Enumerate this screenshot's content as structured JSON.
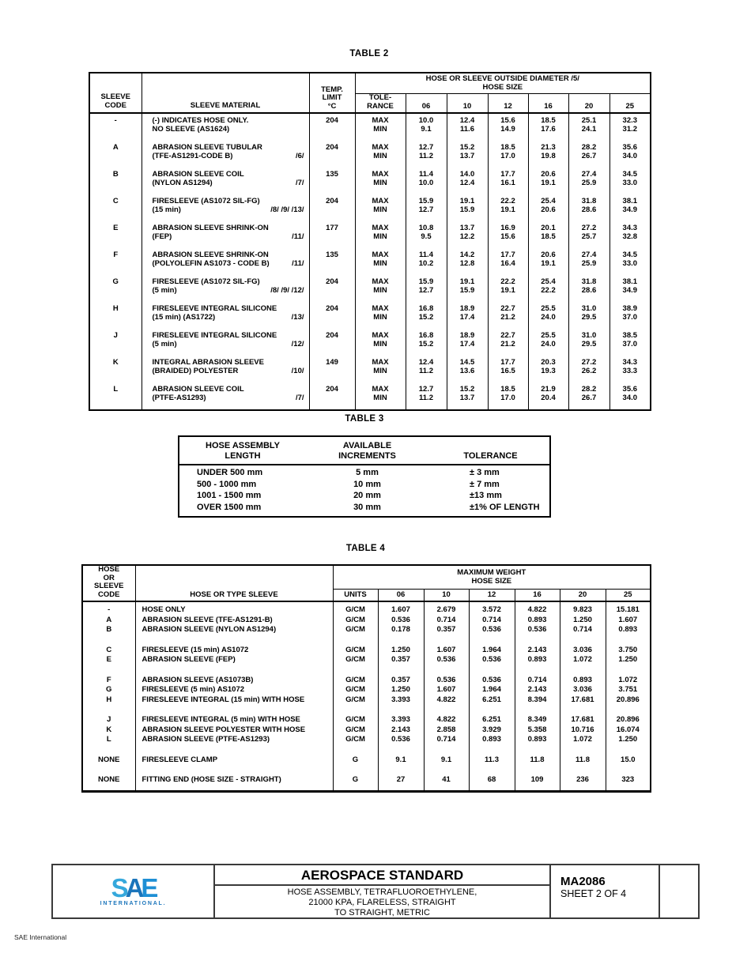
{
  "table2": {
    "title": "TABLE 2",
    "header": {
      "code_l1": "SLEEVE",
      "code_l2": "CODE",
      "material": "SLEEVE MATERIAL",
      "temp_l1": "TEMP.",
      "temp_l2": "LIMIT",
      "temp_l3": "°C",
      "span_l1": "HOSE OR SLEEVE OUTSIDE DIAMETER /5/",
      "span_l2": "HOSE SIZE",
      "tol_l1": "TOLE-",
      "tol_l2": "RANCE",
      "sizes": [
        "06",
        "10",
        "12",
        "16",
        "20",
        "25"
      ]
    },
    "labels": {
      "max": "MAX",
      "min": "MIN"
    },
    "rows": [
      {
        "code": "-",
        "m1": "(-) INDICATES HOSE ONLY.",
        "m2": "NO SLEEVE (AS1624)",
        "fn": "",
        "temp": "204",
        "max": [
          "10.0",
          "12.4",
          "15.6",
          "18.5",
          "25.1",
          "32.3"
        ],
        "min": [
          "9.1",
          "11.6",
          "14.9",
          "17.6",
          "24.1",
          "31.2"
        ]
      },
      {
        "code": "A",
        "m1": "ABRASION SLEEVE TUBULAR",
        "m2": "(TFE-AS1291-CODE B)",
        "fn": "/6/",
        "temp": "204",
        "max": [
          "12.7",
          "15.2",
          "18.5",
          "21.3",
          "28.2",
          "35.6"
        ],
        "min": [
          "11.2",
          "13.7",
          "17.0",
          "19.8",
          "26.7",
          "34.0"
        ]
      },
      {
        "code": "B",
        "m1": "ABRASION SLEEVE COIL",
        "m2": "(NYLON AS1294)",
        "fn": "/7/",
        "temp": "135",
        "max": [
          "11.4",
          "14.0",
          "17.7",
          "20.6",
          "27.4",
          "34.5"
        ],
        "min": [
          "10.0",
          "12.4",
          "16.1",
          "19.1",
          "25.9",
          "33.0"
        ]
      },
      {
        "code": "C",
        "m1": "FIRESLEEVE (AS1072 SIL-FG)",
        "m2": "(15 min)",
        "fn": "/8/ /9/ /13/",
        "temp": "204",
        "max": [
          "15.9",
          "19.1",
          "22.2",
          "25.4",
          "31.8",
          "38.1"
        ],
        "min": [
          "12.7",
          "15.9",
          "19.1",
          "20.6",
          "28.6",
          "34.9"
        ]
      },
      {
        "code": "E",
        "m1": "ABRASION SLEEVE SHRINK-ON",
        "m2": "(FEP)",
        "fn": "/11/",
        "temp": "177",
        "max": [
          "10.8",
          "13.7",
          "16.9",
          "20.1",
          "27.2",
          "34.3"
        ],
        "min": [
          "9.5",
          "12.2",
          "15.6",
          "18.5",
          "25.7",
          "32.8"
        ]
      },
      {
        "code": "F",
        "m1": "ABRASION SLEEVE SHRINK-ON",
        "m2": "(POLYOLEFIN AS1073 - CODE B)",
        "fn": "/11/",
        "temp": "135",
        "max": [
          "11.4",
          "14.2",
          "17.7",
          "20.6",
          "27.4",
          "34.5"
        ],
        "min": [
          "10.2",
          "12.8",
          "16.4",
          "19.1",
          "25.9",
          "33.0"
        ]
      },
      {
        "code": "G",
        "m1": "FIRESLEEVE (AS1072 SIL-FG)",
        "m2": "(5 min)",
        "fn": "/8/ /9/ /12/",
        "temp": "204",
        "max": [
          "15.9",
          "19.1",
          "22.2",
          "25.4",
          "31.8",
          "38.1"
        ],
        "min": [
          "12.7",
          "15.9",
          "19.1",
          "22.2",
          "28.6",
          "34.9"
        ]
      },
      {
        "code": "H",
        "m1": "FIRESLEEVE INTEGRAL SILICONE",
        "m2": "(15 min) (AS1722)",
        "fn": "/13/",
        "temp": "204",
        "max": [
          "16.8",
          "18.9",
          "22.7",
          "25.5",
          "31.0",
          "38.9"
        ],
        "min": [
          "15.2",
          "17.4",
          "21.2",
          "24.0",
          "29.5",
          "37.0"
        ]
      },
      {
        "code": "J",
        "m1": "FIRESLEEVE INTEGRAL SILICONE",
        "m2": "(5 min)",
        "fn": "/12/",
        "temp": "204",
        "max": [
          "16.8",
          "18.9",
          "22.7",
          "25.5",
          "31.0",
          "38.5"
        ],
        "min": [
          "15.2",
          "17.4",
          "21.2",
          "24.0",
          "29.5",
          "37.0"
        ]
      },
      {
        "code": "K",
        "m1": "INTEGRAL ABRASION SLEEVE",
        "m2": "(BRAIDED) POLYESTER",
        "fn": "/10/",
        "temp": "149",
        "max": [
          "12.4",
          "14.5",
          "17.7",
          "20.3",
          "27.2",
          "34.3"
        ],
        "min": [
          "11.2",
          "13.6",
          "16.5",
          "19.3",
          "26.2",
          "33.3"
        ]
      },
      {
        "code": "L",
        "m1": "ABRASION SLEEVE COIL",
        "m2": "(PTFE-AS1293)",
        "fn": "/7/",
        "temp": "204",
        "max": [
          "12.7",
          "15.2",
          "18.5",
          "21.9",
          "28.2",
          "35.6"
        ],
        "min": [
          "11.2",
          "13.7",
          "17.0",
          "20.4",
          "26.7",
          "34.0"
        ]
      }
    ]
  },
  "table3": {
    "title": "TABLE 3",
    "header": {
      "c1_l1": "HOSE ASSEMBLY",
      "c1_l2": "LENGTH",
      "c2_l1": "AVAILABLE",
      "c2_l2": "INCREMENTS",
      "c3": "TOLERANCE"
    },
    "rows": [
      {
        "length": "UNDER 500 mm",
        "increment": "5 mm",
        "tolerance": "± 3 mm"
      },
      {
        "length": "500 - 1000 mm",
        "increment": "10 mm",
        "tolerance": "± 7 mm"
      },
      {
        "length": "1001 - 1500 mm",
        "increment": "20 mm",
        "tolerance": "±13 mm"
      },
      {
        "length": "OVER 1500 mm",
        "increment": "30 mm",
        "tolerance": "±1% OF LENGTH"
      }
    ]
  },
  "table4": {
    "title": "TABLE 4",
    "header": {
      "code_l1": "HOSE",
      "code_l2": "OR",
      "code_l3": "SLEEVE",
      "code_l4": "CODE",
      "type": "HOSE OR TYPE SLEEVE",
      "span_l1": "MAXIMUM WEIGHT",
      "span_l2": "HOSE SIZE",
      "units": "UNITS",
      "sizes": [
        "06",
        "10",
        "12",
        "16",
        "20",
        "25"
      ]
    },
    "rows": [
      {
        "code": "-",
        "desc": "HOSE ONLY",
        "units": "G/CM",
        "values": [
          "1.607",
          "2.679",
          "3.572",
          "4.822",
          "9.823",
          "15.181"
        ]
      },
      {
        "code": "A",
        "desc": "ABRASION SLEEVE (TFE-AS1291-B)",
        "units": "G/CM",
        "values": [
          "0.536",
          "0.714",
          "0.714",
          "0.893",
          "1.250",
          "1.607"
        ]
      },
      {
        "code": "B",
        "desc": "ABRASION SLEEVE (NYLON AS1294)",
        "units": "G/CM",
        "values": [
          "0.178",
          "0.357",
          "0.536",
          "0.536",
          "0.714",
          "0.893"
        ]
      },
      {
        "code": "C",
        "desc": "FIRESLEEVE (15 min) AS1072",
        "units": "G/CM",
        "values": [
          "1.250",
          "1.607",
          "1.964",
          "2.143",
          "3.036",
          "3.750"
        ]
      },
      {
        "code": "E",
        "desc": "ABRASION SLEEVE (FEP)",
        "units": "G/CM",
        "values": [
          "0.357",
          "0.536",
          "0.536",
          "0.893",
          "1.072",
          "1.250"
        ]
      },
      {
        "code": "F",
        "desc": "ABRASION SLEEVE (AS1073B)",
        "units": "G/CM",
        "values": [
          "0.357",
          "0.536",
          "0.536",
          "0.714",
          "0.893",
          "1.072"
        ]
      },
      {
        "code": "G",
        "desc": "FIRESLEEVE (5 min) AS1072",
        "units": "G/CM",
        "values": [
          "1.250",
          "1.607",
          "1.964",
          "2.143",
          "3.036",
          "3.751"
        ]
      },
      {
        "code": "H",
        "desc": "FIRESLEEVE INTEGRAL (15 min) WITH HOSE",
        "units": "G/CM",
        "values": [
          "3.393",
          "4.822",
          "6.251",
          "8.394",
          "17.681",
          "20.896"
        ]
      },
      {
        "code": "J",
        "desc": "FIRESLEEVE INTEGRAL (5 min) WITH HOSE",
        "units": "G/CM",
        "values": [
          "3.393",
          "4.822",
          "6.251",
          "8.349",
          "17.681",
          "20.896"
        ]
      },
      {
        "code": "K",
        "desc": "ABRASION SLEEVE POLYESTER WITH HOSE",
        "units": "G/CM",
        "values": [
          "2.143",
          "2.858",
          "3.929",
          "5.358",
          "10.716",
          "16.074"
        ]
      },
      {
        "code": "L",
        "desc": "ABRASION SLEEVE (PTFE-AS1293)",
        "units": "G/CM",
        "values": [
          "0.536",
          "0.714",
          "0.893",
          "0.893",
          "1.072",
          "1.250"
        ]
      },
      {
        "code": "NONE",
        "desc": "FIRESLEEVE CLAMP",
        "units": "G",
        "values": [
          "9.1",
          "9.1",
          "11.3",
          "11.8",
          "11.8",
          "15.0"
        ]
      },
      {
        "code": "NONE",
        "desc": "FITTING END (HOSE SIZE - STRAIGHT)",
        "units": "G",
        "values": [
          "27",
          "41",
          "68",
          "109",
          "236",
          "323"
        ]
      }
    ]
  },
  "footer": {
    "logo": {
      "s": "S",
      "a": "A",
      "e": "E",
      "sub": "INTERNATIONAL."
    },
    "doc_type": "AEROSPACE STANDARD",
    "subtitle_l1": "HOSE ASSEMBLY, TETRAFLUOROETHYLENE,",
    "subtitle_l2": "21000 KPA, FLARELESS, STRAIGHT",
    "subtitle_l3": "TO STRAIGHT, METRIC",
    "doc_number": "MA2086",
    "sheet": "SHEET 2 OF 4"
  },
  "page": {
    "credit": "SAE International"
  },
  "colors": {
    "logo_light_blue": "#35a8dc",
    "logo_dark_blue": "#1b75bb",
    "logo_mid_blue": "#1e8fd5"
  }
}
